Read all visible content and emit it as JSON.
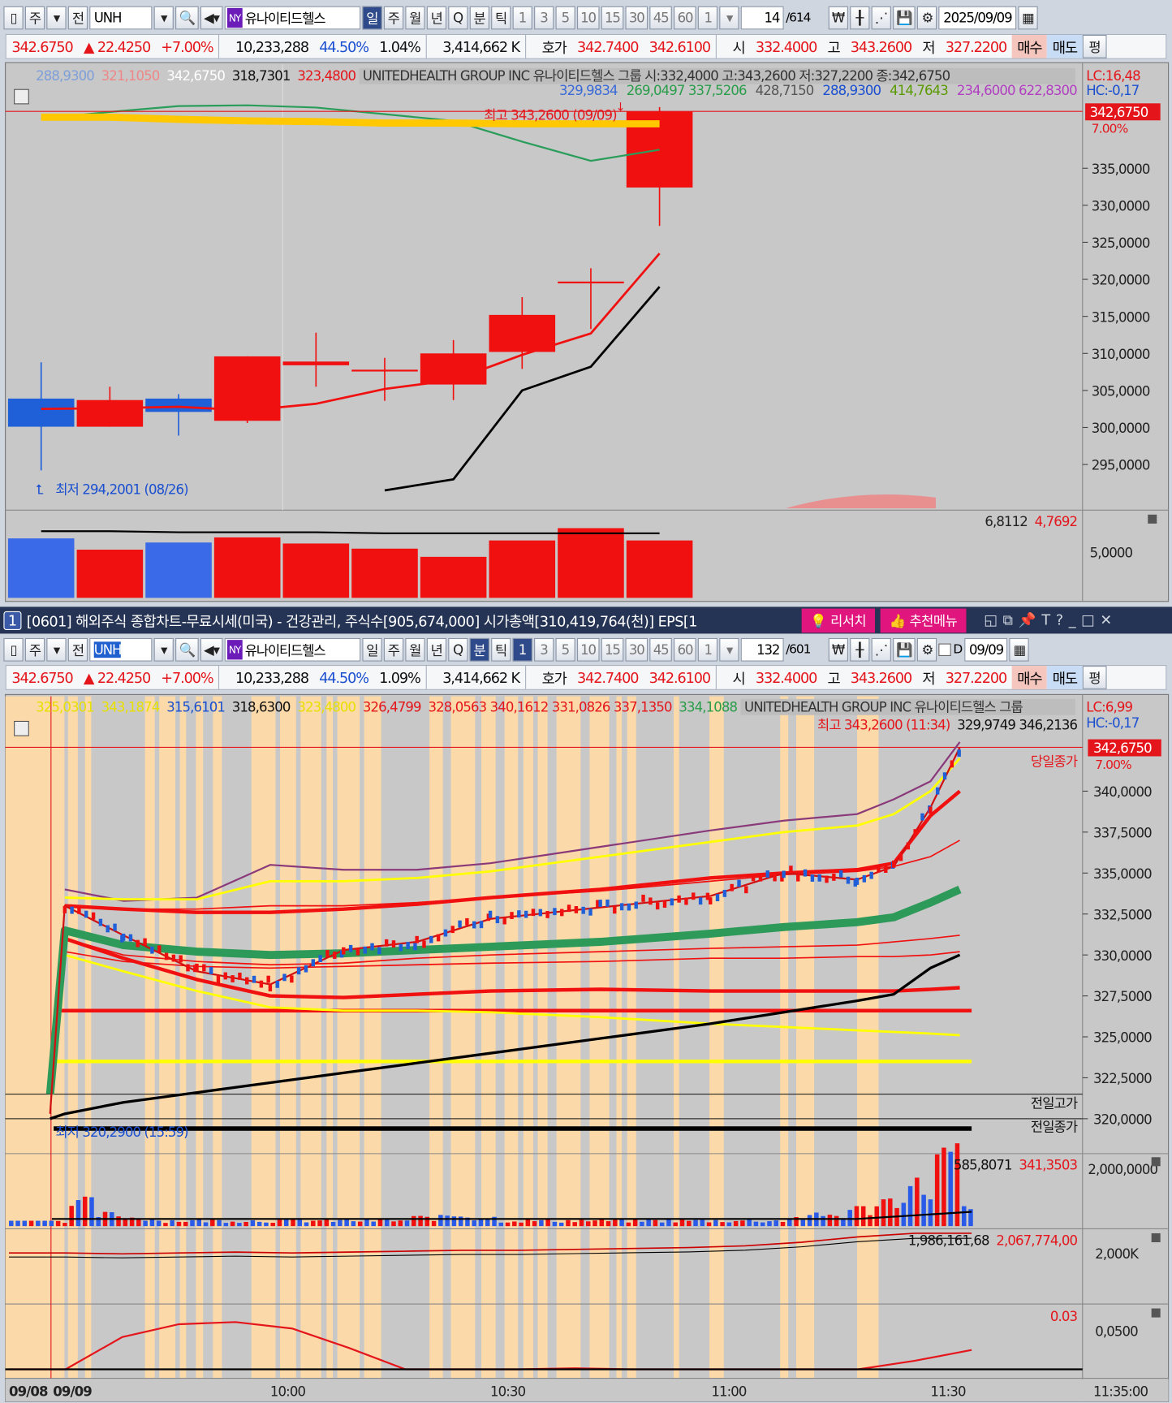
{
  "toolbar_top": {
    "items": [
      "주",
      "전"
    ],
    "symbol": "UNH",
    "exchange": "NY",
    "name": "유나이티드헬스",
    "periods": [
      "일",
      "주",
      "월",
      "년",
      "Q",
      "분",
      "틱"
    ],
    "minutes": [
      "1",
      "3",
      "5",
      "10",
      "15",
      "30",
      "45",
      "60",
      "1"
    ],
    "active_period": "일",
    "count": "14",
    "total": "/614",
    "date": "2025/09/09"
  },
  "info": {
    "price": "342.6750",
    "change": "▲ 22.4250",
    "pct": "+7.00%",
    "volume": "10,233,288",
    "vol_pct": "44.50%",
    "turnover_top": "1.04%",
    "turnover_bottom": "1.09%",
    "amount": "3,414,662 K",
    "quote_label": "호가",
    "ask": "342.7400",
    "bid": "342.6100",
    "open_label": "시",
    "open": "332.4000",
    "high_label": "고",
    "high": "343.2600",
    "low_label": "저",
    "low": "327.2200",
    "buy": "매수",
    "sell": "매도",
    "eval": "평"
  },
  "chart1": {
    "legend": [
      "288,9300",
      "321,1050",
      "342,6750",
      "318,7301",
      "323,4800"
    ],
    "legend_colors": [
      "#7f9fd8",
      "#e88",
      "#fff",
      "#111",
      "#e4161b"
    ],
    "header": "UNITEDHEALTH GROUP INC  유나이티드헬스 그룹 시:332,4000 고:343,2600 저:327,2200 종:342,6750",
    "legend2": [
      "329,9834",
      "269,0497 337,5206",
      "428,7150",
      "288,9300",
      "414,7643",
      "234,6000 622,8300"
    ],
    "legend2_colors": [
      "#3a6ad8",
      "#2a9d4a",
      "#555",
      "#1a4fd0",
      "#5a9a00",
      "#b040c0"
    ],
    "lc": "LC:16,48",
    "hc": "HC:-0,17",
    "high_note": "최고 343,2600 (09/09)",
    "low_note": "최저 294,2001 (08/26)",
    "current_price": "342,6750",
    "current_pct": "7.00%",
    "y_ticks": [
      "335,0000",
      "330,0000",
      "325,0000",
      "320,0000",
      "315,0000",
      "310,0000",
      "305,0000",
      "300,0000",
      "295,0000"
    ],
    "vol_label": [
      "6,8112",
      "4,7692"
    ],
    "vol_tick": "5,0000"
  },
  "title_bar": {
    "num": "1",
    "text": "[0601] 해외주식 종합차트-무료시세(미국) - 건강관리, 주식수[905,674,000] 시가총액[310,419,764(천)] EPS[1",
    "research": "리서치",
    "recommend": "추천메뉴"
  },
  "toolbar_bottom": {
    "items": [
      "주",
      "전"
    ],
    "symbol": "UNH",
    "exchange": "NY",
    "name": "유나이티드헬스",
    "periods": [
      "일",
      "주",
      "월",
      "년",
      "Q",
      "분",
      "틱"
    ],
    "minutes": [
      "1",
      "3",
      "5",
      "10",
      "15",
      "30",
      "45",
      "60",
      "1"
    ],
    "active_period": "분",
    "active_minute": "1",
    "count": "132",
    "total": "/601",
    "d_label": "D",
    "date": "09/09"
  },
  "chart2": {
    "legend": [
      "325,0301",
      "343,1874",
      "315,6101",
      "318,6300",
      "323,4800",
      "326,4799",
      "328,0563 340,1612 331,0826 337,1350",
      "334,1088"
    ],
    "legend_colors": [
      "#e8e000",
      "#e8e000",
      "#1a4fd0",
      "#111",
      "#e8e000",
      "#e4161b",
      "#e4161b",
      "#2a9d4a"
    ],
    "header": "UNITEDHEALTH GROUP INC  유나이티드헬스 그룹",
    "lc": "LC:6,99",
    "hc": "HC:-0,17",
    "high_note": "최고 343,2600 (11:34)",
    "high_vals": "329,9749 346,2136",
    "low_note": "최저 320,2900 (15:59)",
    "close_label": "당일종가",
    "prev_high_label": "전일고가",
    "prev_close_label": "전일종가",
    "current_price": "342,6750",
    "current_pct": "7.00%",
    "y_ticks": [
      "340,0000",
      "337,5000",
      "335,0000",
      "332,5000",
      "330,0000",
      "327,5000",
      "325,0000",
      "322,5000",
      "320,0000"
    ],
    "vol_label": [
      "585,8071",
      "341,3503"
    ],
    "vol_tick": "2,000,0000",
    "p3_label": [
      "1,986,161,68",
      "2,067,774,00"
    ],
    "p3_tick": "2,000K",
    "p4_label": "0.03",
    "p4_tick": "0,0500",
    "x_ticks": [
      "09/08",
      "09/09",
      "10:00",
      "10:30",
      "11:00",
      "11:30",
      "11:35:00"
    ]
  },
  "chart_data": [
    {
      "type": "candlestick",
      "period": "daily",
      "ylim": [
        291,
        345
      ],
      "ohlc": [
        [
          303.9,
          308.8,
          294.2,
          300.1
        ],
        [
          300.1,
          305.5,
          300.1,
          303.7
        ],
        [
          303.9,
          304.5,
          298.9,
          302.1
        ],
        [
          300.9,
          309.6,
          300.6,
          309.6
        ],
        [
          308.4,
          312.8,
          305.5,
          308.9
        ],
        [
          307.8,
          309.4,
          303.6,
          307.8
        ],
        [
          305.8,
          311.8,
          303.7,
          310.0
        ],
        [
          310.2,
          317.6,
          307.9,
          315.2
        ],
        [
          319.5,
          321.5,
          313.3,
          319.7
        ],
        [
          332.4,
          343.26,
          327.22,
          342.675
        ]
      ],
      "ma_red": [
        302.5,
        302.6,
        302.8,
        302.3,
        303.2,
        305.2,
        306.4,
        309.8,
        312.7,
        323.5
      ],
      "ma_black": [
        null,
        null,
        null,
        null,
        null,
        291.5,
        293.0,
        305.0,
        308.2,
        319.0
      ],
      "ma_green": [
        341.7,
        342.6,
        343.4,
        343.5,
        343.2,
        342.3,
        341.4,
        338.6,
        336.0,
        337.5
      ],
      "ma_yellow": [
        341.9,
        341.9,
        341.6,
        341.4,
        341.3,
        341.1,
        341.1,
        341.0,
        341.0,
        341.0
      ],
      "volume": [
        5.8,
        4.7,
        5.4,
        5.9,
        5.3,
        4.8,
        4.0,
        5.6,
        6.8,
        5.6
      ],
      "volume_ma": [
        6.5,
        6.5,
        6.4,
        6.4,
        6.4,
        6.3,
        6.3,
        6.3,
        6.3,
        6.3
      ]
    },
    {
      "type": "line",
      "period": "1-minute",
      "ylim": [
        318.5,
        344
      ],
      "times": [
        "09:30",
        "09:32",
        "09:40",
        "09:50",
        "10:00",
        "10:10",
        "10:20",
        "10:30",
        "10:45",
        "11:00",
        "11:10",
        "11:20",
        "11:25",
        "11:30",
        "11:34"
      ],
      "series": {
        "price": [
          320.3,
          333.0,
          331.2,
          329.0,
          328.2,
          330.3,
          330.8,
          332.2,
          332.9,
          333.6,
          335.0,
          334.6,
          335.4,
          339.0,
          342.675
        ],
        "green": [
          321.5,
          331.5,
          330.6,
          330.2,
          330.0,
          330.1,
          330.3,
          330.5,
          330.8,
          331.3,
          331.7,
          332.0,
          332.3,
          333.2,
          334.0
        ],
        "red_thick_upper": [
          null,
          333.0,
          332.8,
          332.6,
          332.6,
          332.8,
          333.1,
          333.5,
          334.0,
          334.7,
          335.0,
          335.2,
          335.6,
          338.5,
          340.0
        ],
        "purple": [
          null,
          334.0,
          333.3,
          333.5,
          335.5,
          335.2,
          335.2,
          335.6,
          336.6,
          337.6,
          338.2,
          338.6,
          339.5,
          340.6,
          343.0
        ],
        "yellow_upper": [
          null,
          333.5,
          333.4,
          333.4,
          334.5,
          334.5,
          334.7,
          335.1,
          336.0,
          336.9,
          337.5,
          337.9,
          338.6,
          340.0,
          342.0
        ],
        "red_thin_upper": [
          null,
          333.0,
          332.8,
          332.8,
          333.0,
          333.0,
          333.2,
          333.5,
          333.9,
          334.5,
          334.9,
          335.1,
          335.4,
          336.0,
          337.0
        ],
        "red_thin_lower": [
          null,
          331.0,
          330.0,
          329.6,
          329.4,
          329.5,
          329.8,
          330.0,
          330.2,
          330.4,
          330.5,
          330.6,
          330.8,
          331.0,
          331.2
        ],
        "red_mid": [
          null,
          330.2,
          329.6,
          329.3,
          329.2,
          329.3,
          329.4,
          329.5,
          329.6,
          329.8,
          329.8,
          329.9,
          329.9,
          330.0,
          330.2
        ],
        "red_thick_lower": [
          null,
          331.0,
          329.8,
          328.5,
          327.5,
          327.4,
          327.6,
          327.8,
          327.9,
          327.8,
          327.8,
          327.8,
          327.8,
          327.9,
          328.0
        ],
        "yellow_lower": [
          null,
          330.0,
          329.0,
          327.8,
          326.8,
          326.6,
          326.6,
          326.5,
          326.2,
          325.8,
          325.6,
          325.4,
          325.3,
          325.2,
          325.1
        ],
        "black": [
          320.0,
          320.3,
          321.0,
          321.6,
          322.2,
          322.8,
          323.4,
          324.0,
          324.9,
          325.8,
          326.5,
          327.2,
          327.6,
          329.2,
          330.0
        ]
      },
      "flat_lines": {
        "red": 326.6,
        "yellow": 323.5,
        "black_thick": 319.4,
        "prev_high": 321.5,
        "prev_close": 320.0,
        "close": 342.675
      },
      "volume": [
        2,
        8,
        4,
        3,
        2,
        2,
        2,
        2,
        2,
        2,
        2,
        2,
        2,
        3,
        4,
        3,
        2,
        2,
        2,
        2,
        2,
        2,
        2,
        2,
        2,
        2,
        3,
        4,
        6,
        9,
        14,
        24,
        6
      ],
      "obv": [
        50,
        50,
        49,
        50,
        51,
        50,
        51,
        52,
        53,
        53,
        54,
        55,
        56,
        58,
        62,
        68,
        72,
        72
      ],
      "osc": [
        0,
        0,
        30,
        42,
        44,
        38,
        20,
        0,
        0,
        0,
        1,
        0,
        0,
        0,
        0,
        0,
        8,
        18
      ]
    }
  ]
}
